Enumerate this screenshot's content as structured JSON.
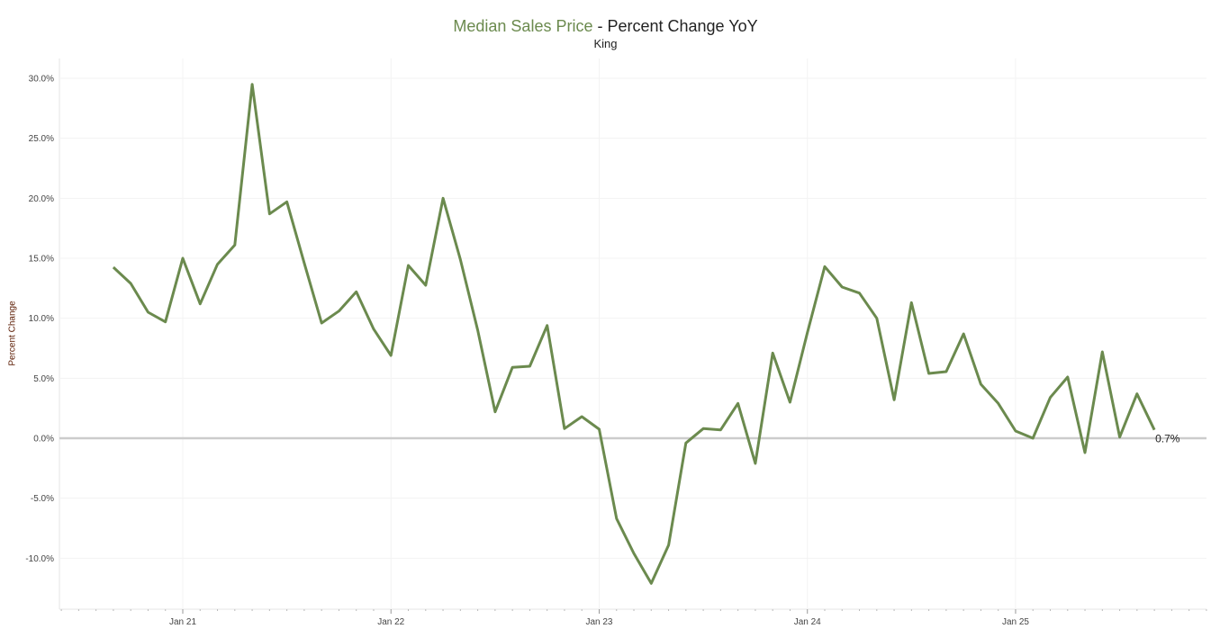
{
  "chart_data": {
    "type": "line",
    "title_accent": "Median Sales Price",
    "title_rest": " - Percent Change YoY",
    "subtitle": "King",
    "ylabel": "Percent Change",
    "xlabel": "",
    "ylim": [
      -14,
      31
    ],
    "yticks": [
      -10,
      -5,
      0,
      5,
      10,
      15,
      20,
      25,
      30
    ],
    "ytick_labels": [
      "-10.0%",
      "-5.0%",
      "0.0%",
      "5.0%",
      "10.0%",
      "15.0%",
      "20.0%",
      "25.0%",
      "30.0%"
    ],
    "xticks": [
      "Jan 21",
      "Jan 22",
      "Jan 23",
      "Jan 24",
      "Jan 25"
    ],
    "x_start": "Sep 2020",
    "x_end": "Sep 2025",
    "series": [
      {
        "name": "Median Sales Price",
        "color": "#6b8a4e",
        "values": [
          14.25,
          12.9,
          10.5,
          9.7,
          15.0,
          11.2,
          14.5,
          16.1,
          29.5,
          18.7,
          19.7,
          14.6,
          9.6,
          10.6,
          12.2,
          9.1,
          6.9,
          14.4,
          12.75,
          20.0,
          14.9,
          9.0,
          2.2,
          5.9,
          6.0,
          9.4,
          0.8,
          1.8,
          0.75,
          -6.7,
          -9.6,
          -12.1,
          -8.9,
          -0.4,
          0.8,
          0.7,
          2.9,
          -2.1,
          7.1,
          3.0,
          8.8,
          14.3,
          12.6,
          12.1,
          10.0,
          3.2,
          11.3,
          5.4,
          5.55,
          8.7,
          4.5,
          2.9,
          0.6,
          0.0,
          3.4,
          5.1,
          -1.2,
          7.2,
          0.1,
          3.7,
          0.7
        ]
      }
    ],
    "last_value_label": "0.7%",
    "grid": true
  }
}
